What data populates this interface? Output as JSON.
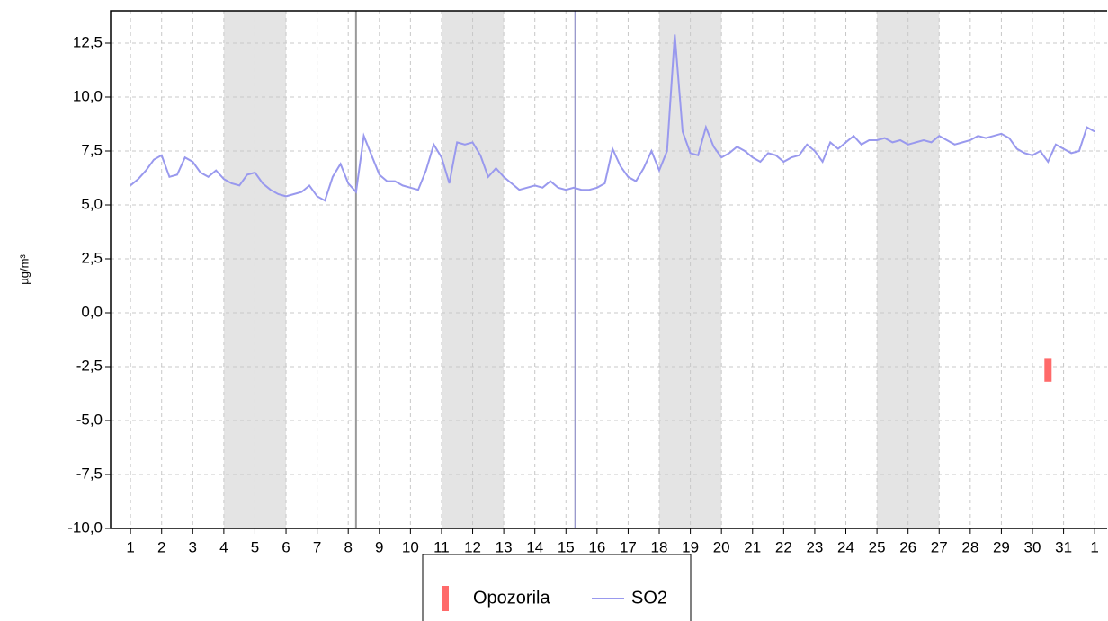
{
  "chart_data": {
    "type": "line",
    "ylabel": "µg/m³",
    "xlim": [
      0.36,
      32.4
    ],
    "ylim": [
      -10,
      14
    ],
    "xticks": [
      1,
      2,
      3,
      4,
      5,
      6,
      7,
      8,
      9,
      10,
      11,
      12,
      13,
      14,
      15,
      16,
      17,
      18,
      19,
      20,
      21,
      22,
      23,
      24,
      25,
      26,
      27,
      28,
      29,
      30,
      31,
      {
        "value": 32,
        "label": "1"
      }
    ],
    "yticks": [
      {
        "value": -10,
        "label": "-10,0"
      },
      {
        "value": -7.5,
        "label": "-7,5"
      },
      {
        "value": -5,
        "label": "-5,0"
      },
      {
        "value": -2.5,
        "label": "-2,5"
      },
      {
        "value": 0,
        "label": "0,0"
      },
      {
        "value": 2.5,
        "label": "2,5"
      },
      {
        "value": 5,
        "label": "5,0"
      },
      {
        "value": 7.5,
        "label": "7,5"
      },
      {
        "value": 10,
        "label": "10,0"
      },
      {
        "value": 12.5,
        "label": "12,5"
      }
    ],
    "grid": true,
    "shaded_ranges": [
      [
        4,
        6
      ],
      [
        11,
        13
      ],
      [
        18,
        20
      ],
      [
        25,
        27
      ]
    ],
    "shade_color": "#e4e4e4",
    "vlines": [
      {
        "x": 8.25,
        "color": "#999999"
      },
      {
        "x": 15.3,
        "color": "#9a9acc"
      }
    ],
    "warnings": {
      "name": "Opozorila",
      "color": "#ff6a6a",
      "x": [
        30.5
      ],
      "low": [
        -3.2
      ],
      "high": [
        -2.1
      ]
    },
    "series": [
      {
        "name": "SO2",
        "color": "#9999ee",
        "x": [
          1,
          1.25,
          1.5,
          1.75,
          2,
          2.25,
          2.5,
          2.75,
          3,
          3.25,
          3.5,
          3.75,
          4,
          4.25,
          4.5,
          4.75,
          5,
          5.25,
          5.5,
          5.75,
          6,
          6.25,
          6.5,
          6.75,
          7,
          7.25,
          7.5,
          7.75,
          8,
          8.25,
          8.5,
          8.75,
          9,
          9.25,
          9.5,
          9.75,
          10,
          10.25,
          10.5,
          10.75,
          11,
          11.25,
          11.5,
          11.75,
          12,
          12.25,
          12.5,
          12.75,
          13,
          13.25,
          13.5,
          13.75,
          14,
          14.25,
          14.5,
          14.75,
          15,
          15.25,
          15.5,
          15.75,
          16,
          16.25,
          16.5,
          16.75,
          17,
          17.25,
          17.5,
          17.75,
          18,
          18.25,
          18.5,
          18.75,
          19,
          19.25,
          19.5,
          19.75,
          20,
          20.25,
          20.5,
          20.75,
          21,
          21.25,
          21.5,
          21.75,
          22,
          22.25,
          22.5,
          22.75,
          23,
          23.25,
          23.5,
          23.75,
          24,
          24.25,
          24.5,
          24.75,
          25,
          25.25,
          25.5,
          25.75,
          26,
          26.25,
          26.5,
          26.75,
          27,
          27.25,
          27.5,
          27.75,
          28,
          28.25,
          28.5,
          28.75,
          29,
          29.25,
          29.5,
          29.75,
          30,
          30.25,
          30.5,
          30.75,
          31,
          31.25,
          31.5,
          31.75,
          32
        ],
        "values": [
          5.9,
          6.2,
          6.6,
          7.1,
          7.3,
          6.3,
          6.4,
          7.2,
          7.0,
          6.5,
          6.3,
          6.6,
          6.2,
          6.0,
          5.9,
          6.4,
          6.5,
          6.0,
          5.7,
          5.5,
          5.4,
          5.5,
          5.6,
          5.9,
          5.4,
          5.2,
          6.3,
          6.9,
          6.0,
          5.6,
          8.2,
          7.3,
          6.4,
          6.1,
          6.1,
          5.9,
          5.8,
          5.7,
          6.6,
          7.8,
          7.2,
          6.0,
          7.9,
          7.8,
          7.9,
          7.3,
          6.3,
          6.7,
          6.3,
          6.0,
          5.7,
          5.8,
          5.9,
          5.8,
          6.1,
          5.8,
          5.7,
          5.8,
          5.7,
          5.7,
          5.8,
          6.0,
          7.6,
          6.8,
          6.3,
          6.1,
          6.7,
          7.5,
          6.6,
          7.5,
          12.9,
          8.4,
          7.4,
          7.3,
          8.6,
          7.7,
          7.2,
          7.4,
          7.7,
          7.5,
          7.2,
          7.0,
          7.4,
          7.3,
          7.0,
          7.2,
          7.3,
          7.8,
          7.5,
          7.0,
          7.9,
          7.6,
          7.9,
          8.2,
          7.8,
          8.0,
          8.0,
          8.1,
          7.9,
          8.0,
          7.8,
          7.9,
          8.0,
          7.9,
          8.2,
          8.0,
          7.8,
          7.9,
          8.0,
          8.2,
          8.1,
          8.2,
          8.3,
          8.1,
          7.6,
          7.4,
          7.3,
          7.5,
          7.0,
          7.8,
          7.6,
          7.4,
          7.5,
          8.6,
          8.4
        ]
      }
    ]
  }
}
